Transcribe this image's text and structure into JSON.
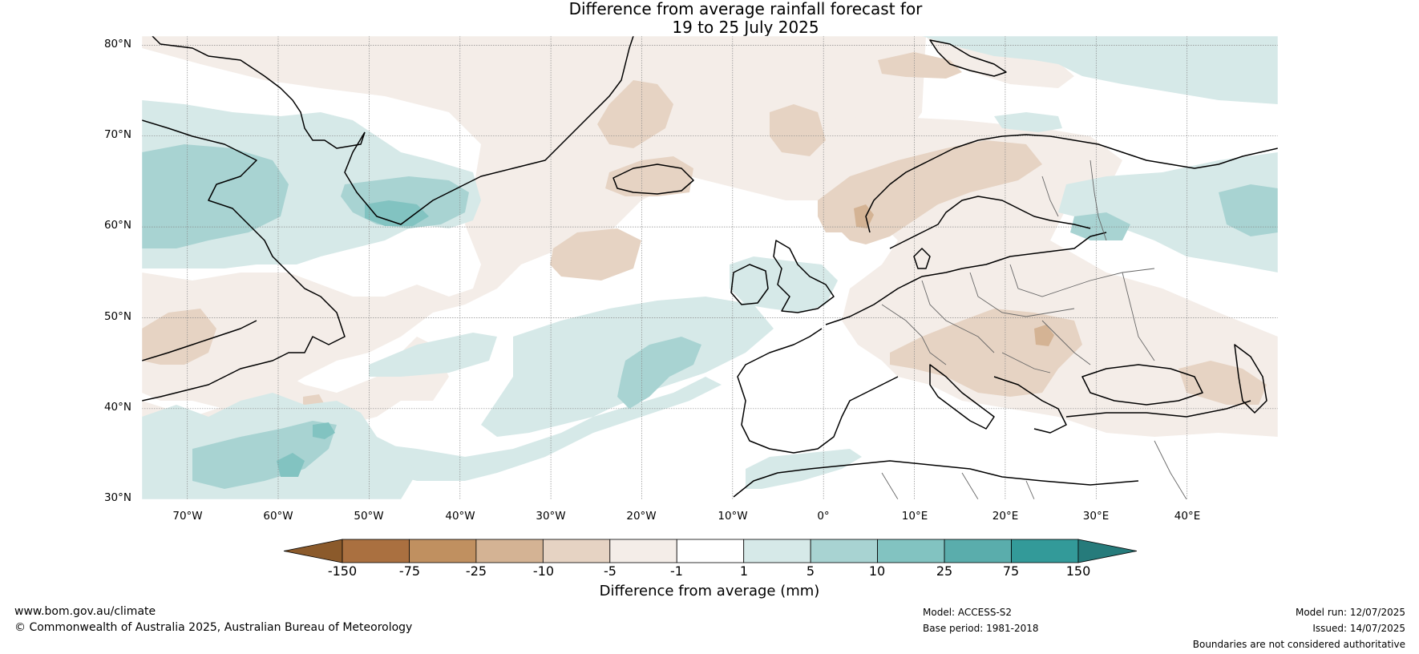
{
  "title": {
    "line1": "Difference from average rainfall forecast for",
    "line2": "19 to 25 July 2025"
  },
  "map": {
    "lat_labels": [
      "80°N",
      "70°N",
      "60°N",
      "50°N",
      "40°N",
      "30°N"
    ],
    "lon_labels": [
      "70°W",
      "60°W",
      "50°W",
      "40°W",
      "30°W",
      "20°W",
      "10°W",
      "0°",
      "10°E",
      "20°E",
      "30°E",
      "40°E"
    ],
    "extent": {
      "lon": [
        -75,
        50
      ],
      "lat": [
        30,
        81
      ]
    }
  },
  "colorbar": {
    "ticks": [
      "-150",
      "-75",
      "-25",
      "-10",
      "-5",
      "-1",
      "1",
      "5",
      "10",
      "25",
      "75",
      "150"
    ],
    "colors": [
      "#8b5a2b",
      "#aa7040",
      "#c09060",
      "#d4b394",
      "#e6d3c3",
      "#f4ede8",
      "#ffffff",
      "#d6e9e8",
      "#a8d3d2",
      "#82c3c1",
      "#5aadac",
      "#339a99",
      "#267b7b"
    ],
    "label": "Difference from average (mm)"
  },
  "footer": {
    "website": "www.bom.gov.au/climate",
    "copyright": "© Commonwealth of Australia 2025, Australian Bureau of Meteorology",
    "model": "Model: ACCESS-S2",
    "base_period": "Base period: 1981-2018",
    "model_run": "Model run: 12/07/2025",
    "issued": "Issued: 14/07/2025",
    "disclaimer": "Boundaries are not considered authoritative"
  }
}
